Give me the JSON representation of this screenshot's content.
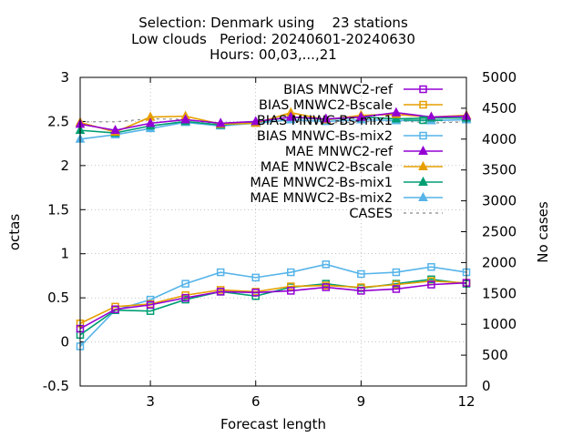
{
  "chart_data": {
    "type": "line",
    "title_lines": [
      "Selection: Denmark using    23 stations",
      "Low clouds   Period: 20240601-20240630",
      "Hours: 00,03,...,21"
    ],
    "xlabel": "Forecast length",
    "ylabel": "octas",
    "y2label": "No cases",
    "xlim": [
      1,
      12
    ],
    "ylim": [
      -0.5,
      3
    ],
    "y2lim": [
      0,
      5000
    ],
    "xticks": [
      3,
      6,
      9,
      12
    ],
    "yticks": [
      -0.5,
      0,
      0.5,
      1,
      1.5,
      2,
      2.5,
      3
    ],
    "y2ticks": [
      0,
      500,
      1000,
      1500,
      2000,
      2500,
      3000,
      3500,
      4000,
      4500,
      5000
    ],
    "x": [
      1,
      2,
      3,
      4,
      5,
      6,
      7,
      8,
      9,
      10,
      11,
      12
    ],
    "series": [
      {
        "name": "BIAS MNWC2-ref",
        "color": "#9400d3",
        "marker": "square",
        "axis": "y",
        "values": [
          0.15,
          0.37,
          0.42,
          0.5,
          0.57,
          0.56,
          0.58,
          0.62,
          0.58,
          0.6,
          0.65,
          0.67
        ]
      },
      {
        "name": "BIAS MNWC2-Bscale",
        "color": "#e69f00",
        "marker": "square",
        "axis": "y",
        "values": [
          0.21,
          0.4,
          0.43,
          0.53,
          0.59,
          0.57,
          0.63,
          0.64,
          0.62,
          0.65,
          0.69,
          0.67
        ]
      },
      {
        "name": "BIAS MNWC-Bs-mix1",
        "color": "#009e73",
        "marker": "square",
        "axis": "y",
        "values": [
          0.08,
          0.36,
          0.35,
          0.48,
          0.57,
          0.52,
          0.62,
          0.66,
          0.61,
          0.66,
          0.71,
          0.66
        ]
      },
      {
        "name": "BIAS MNWC-Bs-mix2",
        "color": "#56b4e9",
        "marker": "square",
        "axis": "y",
        "values": [
          -0.05,
          0.36,
          0.48,
          0.66,
          0.79,
          0.73,
          0.79,
          0.88,
          0.77,
          0.79,
          0.85,
          0.79
        ]
      },
      {
        "name": "MAE MNWC2-ref",
        "color": "#9400d3",
        "marker": "triangle",
        "axis": "y",
        "values": [
          2.47,
          2.4,
          2.48,
          2.52,
          2.48,
          2.5,
          2.55,
          2.53,
          2.55,
          2.6,
          2.55,
          2.56
        ]
      },
      {
        "name": "MAE MNWC2-Bscale",
        "color": "#e69f00",
        "marker": "triangle",
        "axis": "y",
        "values": [
          2.49,
          2.38,
          2.55,
          2.56,
          2.47,
          2.48,
          2.6,
          2.52,
          2.57,
          2.58,
          2.55,
          2.57
        ]
      },
      {
        "name": "MAE MNWC2-Bs-mix1",
        "color": "#009e73",
        "marker": "triangle",
        "axis": "y",
        "values": [
          2.4,
          2.37,
          2.45,
          2.5,
          2.46,
          2.49,
          2.55,
          2.52,
          2.55,
          2.53,
          2.54,
          2.54
        ]
      },
      {
        "name": "MAE MNWC2-Bs-mix2",
        "color": "#56b4e9",
        "marker": "triangle",
        "axis": "y",
        "values": [
          2.3,
          2.35,
          2.42,
          2.49,
          2.45,
          2.48,
          2.52,
          2.5,
          2.52,
          2.51,
          2.51,
          2.52
        ]
      },
      {
        "name": "CASES",
        "color": "#888888",
        "marker": "none",
        "dash": true,
        "axis": "y2",
        "values": [
          4280,
          4280,
          4330,
          4320,
          4240,
          4290,
          4290,
          4260,
          4280,
          4300,
          4260,
          4280
        ]
      }
    ],
    "legend_position": "top-right"
  }
}
